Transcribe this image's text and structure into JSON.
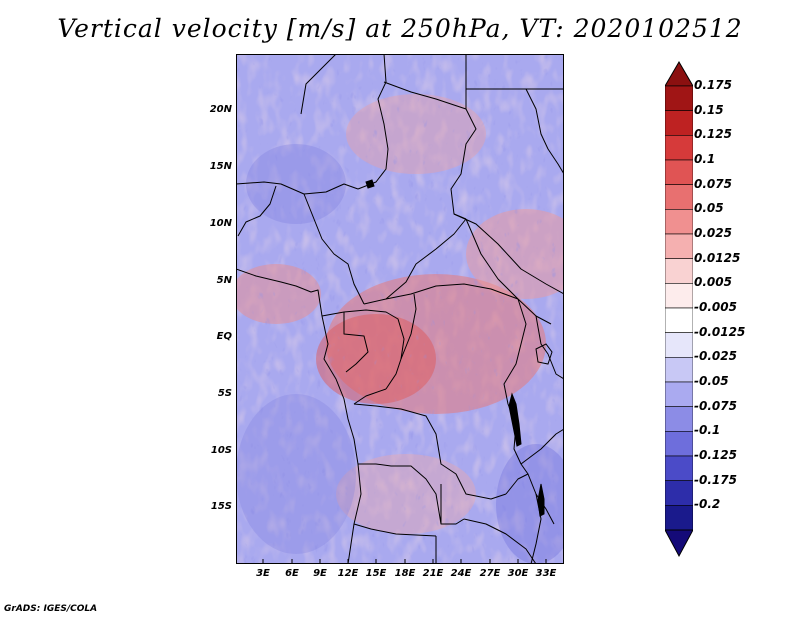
{
  "title": "Vertical velocity [m/s] at 250hPa, VT: 2020102512",
  "footer": "GrADS: IGES/COLA",
  "lat_labels": [
    "20N",
    "15N",
    "10N",
    "5N",
    "EQ",
    "5S",
    "10S",
    "15S"
  ],
  "lon_labels": [
    "3E",
    "6E",
    "9E",
    "12E",
    "15E",
    "18E",
    "21E",
    "24E",
    "27E",
    "30E",
    "33E"
  ],
  "colorbar": {
    "labels": [
      "0.175",
      "0.15",
      "0.125",
      "0.1",
      "0.075",
      "0.05",
      "0.025",
      "0.0125",
      "0.005",
      "-0.005",
      "-0.0125",
      "-0.025",
      "-0.05",
      "-0.075",
      "-0.1",
      "-0.125",
      "-0.175",
      "-0.2"
    ],
    "colors": [
      "#a01515",
      "#be2222",
      "#d63a3a",
      "#e05454",
      "#e87070",
      "#f09090",
      "#f5b0b0",
      "#f9d2d2",
      "#fdecec",
      "#ffffff",
      "#e6e6fa",
      "#c8c8f5",
      "#aaaaf0",
      "#8c8ce6",
      "#6e6edc",
      "#4b4bc8",
      "#2d2daa",
      "#1a1a8c"
    ],
    "top_arrow_color": "#8b1010",
    "bottom_arrow_color": "#140a78"
  }
}
